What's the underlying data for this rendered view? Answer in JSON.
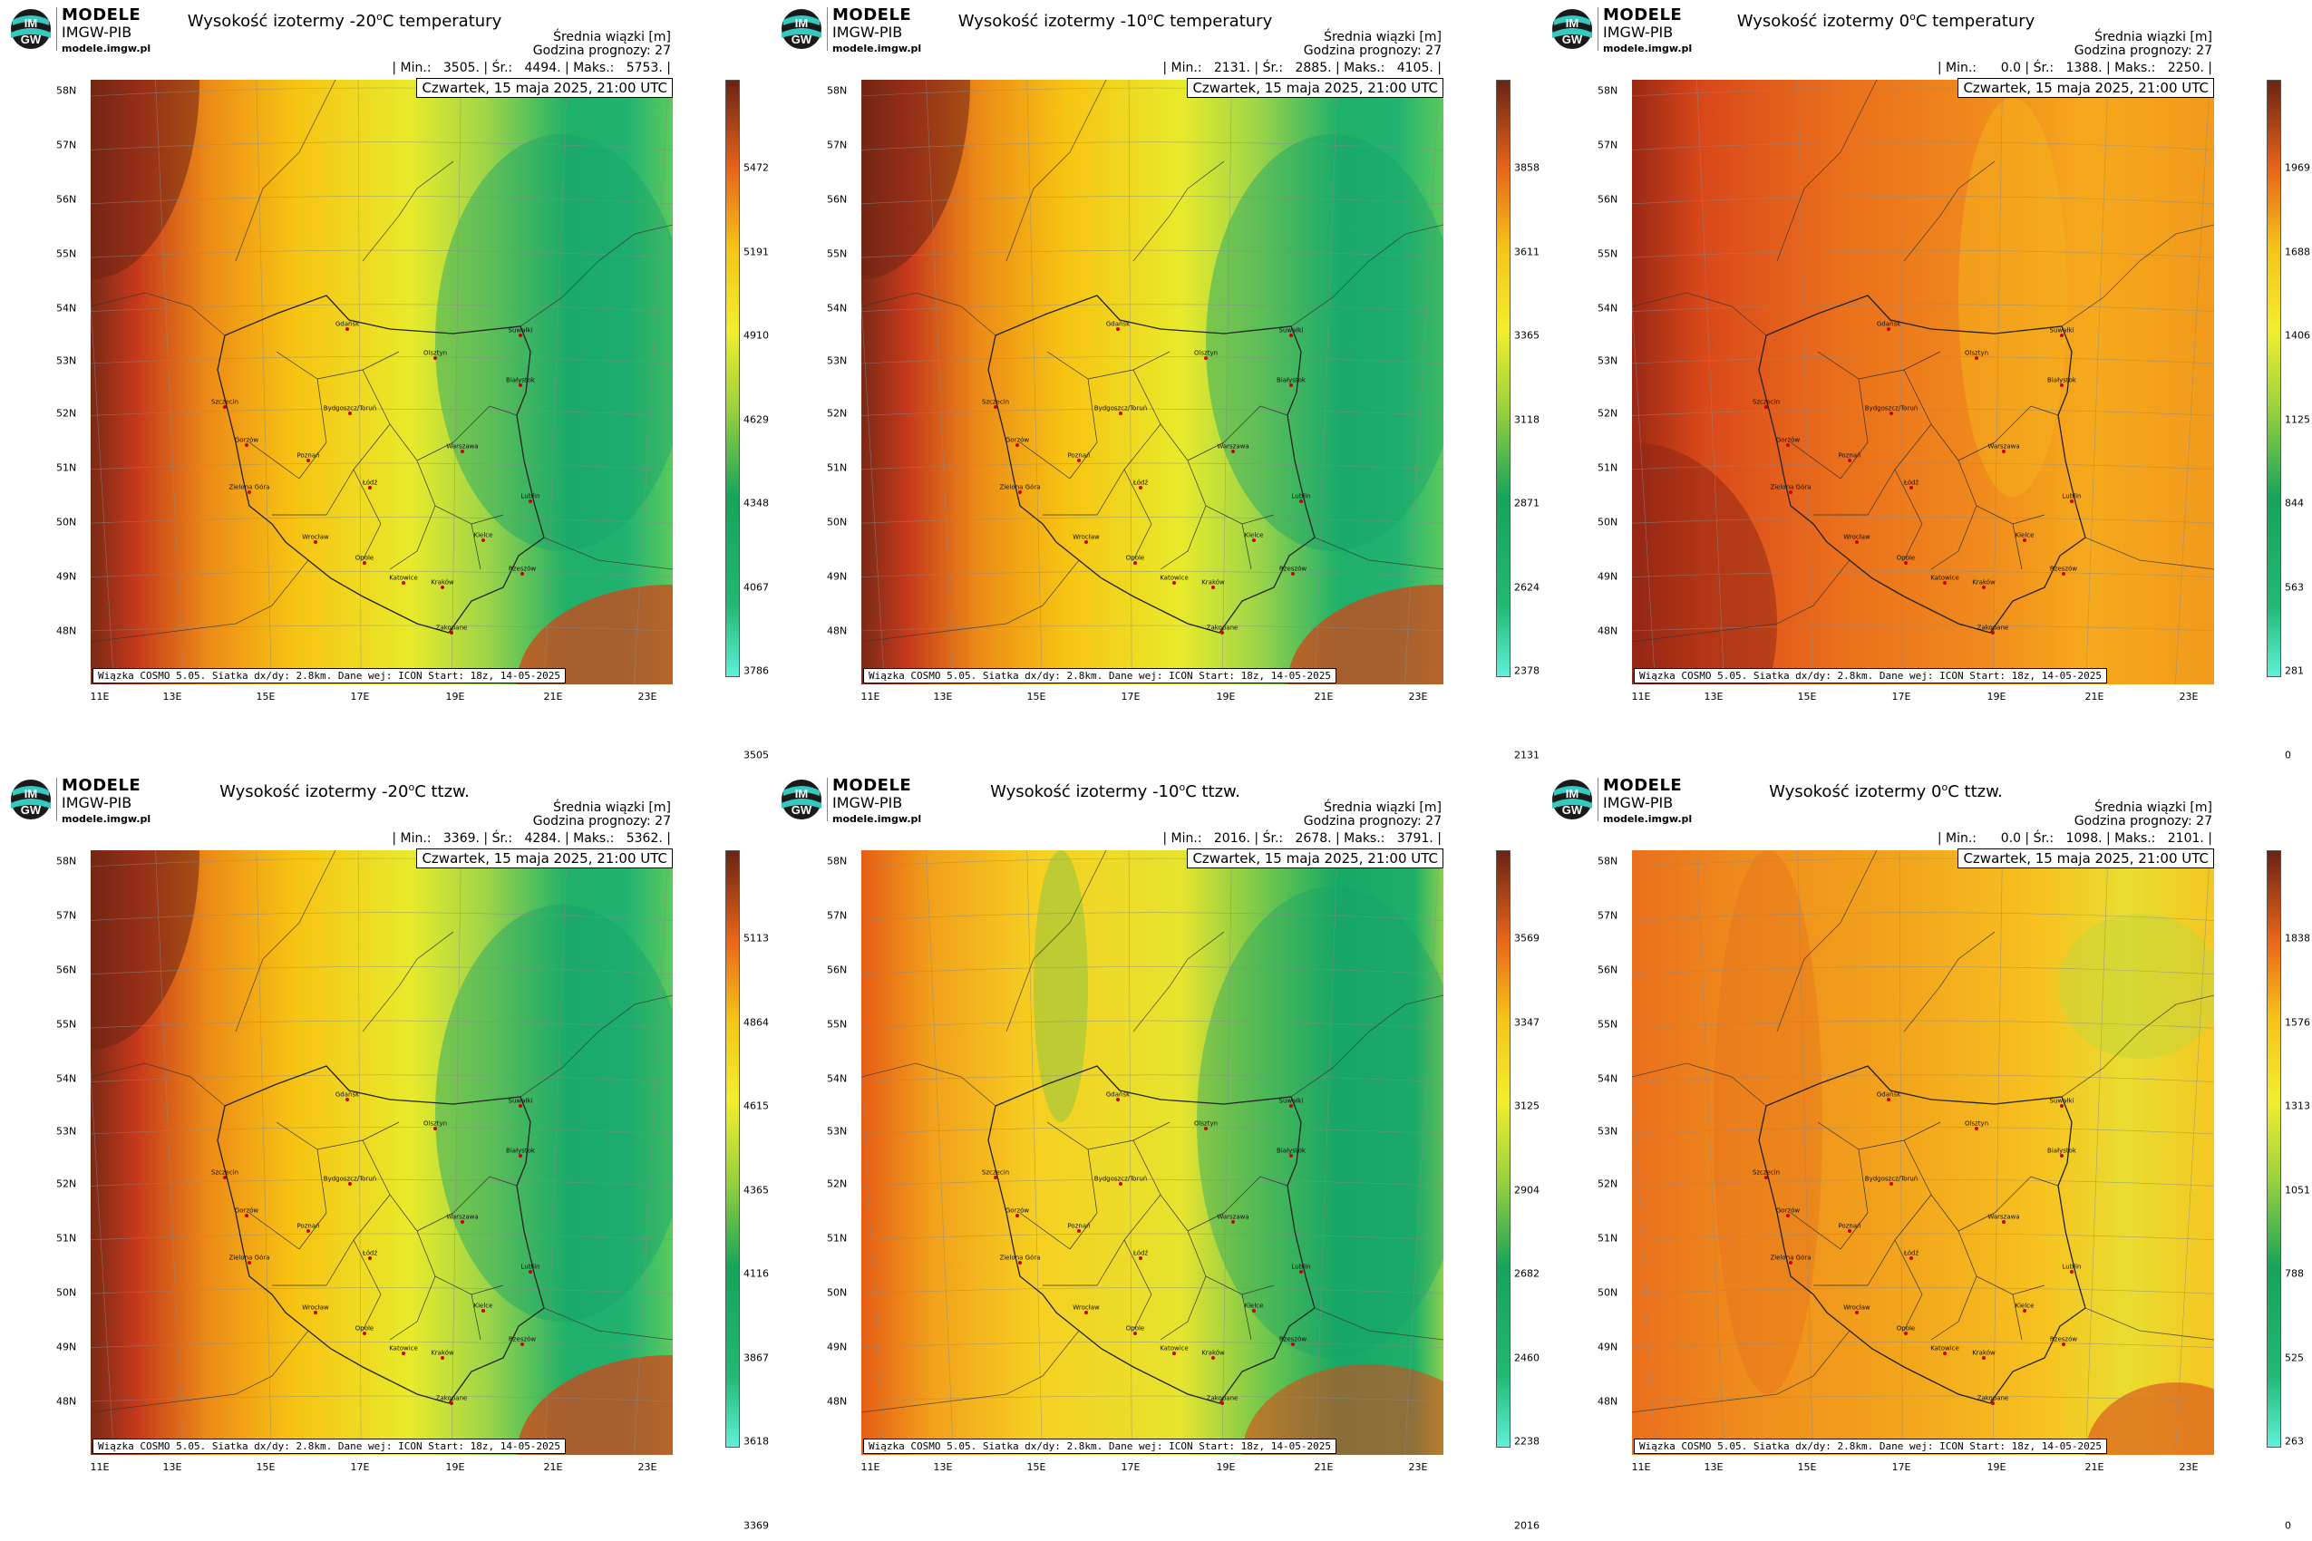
{
  "brand": {
    "name": "MODELE",
    "org": "IMGW-PIB",
    "url": "modele.imgw.pl"
  },
  "common": {
    "avg_label": "Średnia wiązki [m]",
    "forecast_hour": "Godzina prognozy: 27",
    "date": "Czwartek, 15 maja 2025, 21:00 UTC",
    "footer": "Wiązka COSMO 5.05. Siatka dx/dy: 2.8km. Dane wej: ICON Start: 18z, 14-05-2025"
  },
  "lat_labels": [
    "58N",
    "57N",
    "56N",
    "55N",
    "54N",
    "53N",
    "52N",
    "51N",
    "50N",
    "49N",
    "48N"
  ],
  "lon_labels": [
    "11E",
    "13E",
    "15E",
    "17E",
    "19E",
    "21E",
    "23E"
  ],
  "cities": [
    {
      "name": "Gdańsk"
    },
    {
      "name": "Olsztyn"
    },
    {
      "name": "Suwałki"
    },
    {
      "name": "Białystok"
    },
    {
      "name": "Szczecin"
    },
    {
      "name": "Bydgoszcz/Toruń"
    },
    {
      "name": "Gorzów"
    },
    {
      "name": "Poznań"
    },
    {
      "name": "Warszawa"
    },
    {
      "name": "Zielona Góra"
    },
    {
      "name": "Łódź"
    },
    {
      "name": "Lublin"
    },
    {
      "name": "Wrocław"
    },
    {
      "name": "Kielce"
    },
    {
      "name": "Opole"
    },
    {
      "name": "Rzeszów"
    },
    {
      "name": "Katowice"
    },
    {
      "name": "Kraków"
    },
    {
      "name": "Zakopane"
    }
  ],
  "panels": [
    {
      "title": "Wysokość izotermy -20",
      "title_sup": "o",
      "title_end": "C temperatury",
      "stats": "| Min.:   3505. | Śr.:   4494. | Maks.:   5753. |",
      "min": 3505,
      "avg": 4494,
      "max": 5753,
      "ticks": [
        "5472",
        "5191",
        "4910",
        "4629",
        "4348",
        "4067",
        "3786",
        "3505"
      ],
      "pattern": "cold"
    },
    {
      "title": "Wysokość izotermy -10",
      "title_sup": "o",
      "title_end": "C temperatury",
      "stats": "| Min.:   2131. | Śr.:   2885. | Maks.:   4105. |",
      "min": 2131,
      "avg": 2885,
      "max": 4105,
      "ticks": [
        "3858",
        "3611",
        "3365",
        "3118",
        "2871",
        "2624",
        "2378",
        "2131"
      ],
      "pattern": "cold"
    },
    {
      "title": "Wysokość izotermy 0",
      "title_sup": "o",
      "title_end": "C temperatury",
      "stats": "| Min.:      0.0 | Śr.:   1388. | Maks.:   2250. |",
      "min": 0,
      "avg": 1388,
      "max": 2250,
      "ticks": [
        "1969",
        "1688",
        "1406",
        "1125",
        "844",
        "563",
        "281",
        "0"
      ],
      "pattern": "warm"
    },
    {
      "title": "Wysokość izotermy -20",
      "title_sup": "o",
      "title_end": "C ttzw.",
      "stats": "| Min.:   3369. | Śr.:   4284. | Maks.:   5362. |",
      "min": 3369,
      "avg": 4284,
      "max": 5362,
      "ticks": [
        "5113",
        "4864",
        "4615",
        "4365",
        "4116",
        "3867",
        "3618",
        "3369"
      ],
      "pattern": "cold"
    },
    {
      "title": "Wysokość izotermy -10",
      "title_sup": "o",
      "title_end": "C ttzw.",
      "stats": "| Min.:   2016. | Śr.:   2678. | Maks.:   3791. |",
      "min": 2016,
      "avg": 2678,
      "max": 3791,
      "ticks": [
        "3569",
        "3347",
        "3125",
        "2904",
        "2682",
        "2460",
        "2238",
        "2016"
      ],
      "pattern": "cold2"
    },
    {
      "title": "Wysokość izotermy 0",
      "title_sup": "o",
      "title_end": "C ttzw.",
      "stats": "| Min.:      0.0 | Śr.:   1098. | Maks.:   2101. |",
      "min": 0,
      "avg": 1098,
      "max": 2101,
      "ticks": [
        "1838",
        "1576",
        "1313",
        "1051",
        "788",
        "525",
        "263",
        "0"
      ],
      "pattern": "warm2"
    }
  ]
}
